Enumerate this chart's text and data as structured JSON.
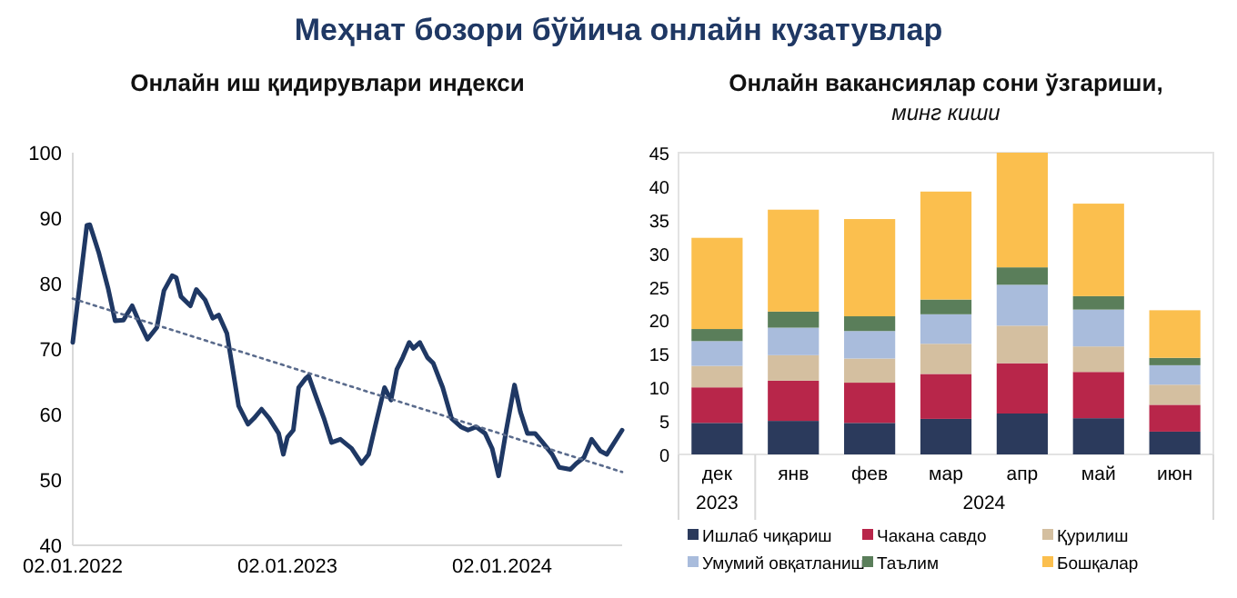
{
  "chart_data": [
    {
      "type": "line",
      "title": "Меҳнат бозори бўйича онлайн кузатувлар",
      "subtitle": "Онлайн иш қидирувлари индекси",
      "xlim": [
        "2022-01-02",
        "2024-07-24"
      ],
      "xticks": [
        {
          "value": "2022-01-02",
          "label": "02.01.2022"
        },
        {
          "value": "2023-01-02",
          "label": "02.01.2023"
        },
        {
          "value": "2024-01-02",
          "label": "02.01.2024"
        }
      ],
      "ylim": [
        40,
        100
      ],
      "yticks": [
        40,
        50,
        60,
        70,
        80,
        90,
        100
      ],
      "grid": false,
      "marker": "none",
      "series": [
        {
          "color": "#1f3864",
          "line_style": "solid",
          "x": [
            "2022-01-02",
            "2022-01-26",
            "2022-01-31",
            "2022-02-15",
            "2022-03-03",
            "2022-03-15",
            "2022-03-29",
            "2022-04-13",
            "2022-04-24",
            "2022-05-09",
            "2022-05-25",
            "2022-06-06",
            "2022-06-20",
            "2022-06-27",
            "2022-07-05",
            "2022-07-21",
            "2022-07-31",
            "2022-08-15",
            "2022-08-28",
            "2022-09-07",
            "2022-09-21",
            "2022-10-01",
            "2022-10-11",
            "2022-10-27",
            "2022-11-06",
            "2022-11-19",
            "2022-12-02",
            "2022-12-18",
            "2022-12-26",
            "2023-01-02",
            "2023-01-12",
            "2023-01-21",
            "2023-02-02",
            "2023-02-07",
            "2023-02-18",
            "2023-03-05",
            "2023-03-18",
            "2023-04-02",
            "2023-04-21",
            "2023-05-08",
            "2023-05-20",
            "2023-06-01",
            "2023-06-16",
            "2023-06-27",
            "2023-07-07",
            "2023-07-17",
            "2023-07-28",
            "2023-08-04",
            "2023-08-15",
            "2023-08-28",
            "2023-09-07",
            "2023-09-23",
            "2023-10-08",
            "2023-10-24",
            "2023-11-05",
            "2023-11-19",
            "2023-12-04",
            "2023-12-16",
            "2023-12-27",
            "2024-01-09",
            "2024-01-23",
            "2024-02-02",
            "2024-02-14",
            "2024-02-27",
            "2024-03-11",
            "2024-03-27",
            "2024-04-08",
            "2024-04-27",
            "2024-05-07",
            "2024-05-20",
            "2024-06-02",
            "2024-06-17",
            "2024-06-28",
            "2024-07-24"
          ],
          "values": [
            71,
            88.9,
            89,
            84.8,
            79.3,
            74.3,
            74.4,
            76.6,
            74.3,
            71.5,
            73.3,
            78.9,
            81.2,
            80.9,
            78,
            76.6,
            79.1,
            77.5,
            74.7,
            75.2,
            72.4,
            66.9,
            61.3,
            58.5,
            59.4,
            60.8,
            59.4,
            57.1,
            53.9,
            56.5,
            57.6,
            64.1,
            65.5,
            65.9,
            63.1,
            59.4,
            55.7,
            56.2,
            54.8,
            52.5,
            53.9,
            58.5,
            64.1,
            62.2,
            66.9,
            68.7,
            71,
            70.1,
            71,
            68.7,
            67.8,
            64.1,
            59.4,
            58.1,
            57.6,
            58.1,
            57.1,
            54.8,
            50.6,
            57.6,
            64.5,
            60.4,
            57.1,
            57.1,
            55.7,
            53.9,
            51.9,
            51.6,
            52.5,
            53.4,
            56.2,
            54.4,
            53.9,
            57.6
          ]
        },
        {
          "color": "#5a6b8c",
          "line_style": "dotted",
          "x": [
            "2022-01-02",
            "2024-07-24"
          ],
          "values": [
            77.7,
            51.2
          ]
        }
      ]
    },
    {
      "type": "bar",
      "stacked": true,
      "title": "Онлайн вакансиялар сони ўзгариши,",
      "subtitle": "минг киши",
      "categories": [
        "дек",
        "янв",
        "фев",
        "мар",
        "апр",
        "май",
        "июн"
      ],
      "ylim": [
        0,
        45
      ],
      "yticks": [
        0,
        5,
        10,
        15,
        20,
        25,
        30,
        35,
        40,
        45
      ],
      "grid": false,
      "legend": "bottom",
      "annotations": [
        "2023",
        "2024"
      ],
      "series": [
        {
          "name": "Ишлаб чиқариш",
          "color": "#2b3a5c",
          "values": [
            4.7,
            5.0,
            4.7,
            5.3,
            6.1,
            5.4,
            3.4
          ]
        },
        {
          "name": "Чакана савдо",
          "color": "#b8264a",
          "values": [
            5.3,
            6.0,
            6.0,
            6.7,
            7.5,
            6.9,
            4.0
          ]
        },
        {
          "name": "Қурилиш",
          "color": "#d4bfa0",
          "values": [
            3.2,
            3.8,
            3.6,
            4.5,
            5.6,
            3.8,
            3.0
          ]
        },
        {
          "name": "Умумий овқатланиш",
          "color": "#a9bcdc",
          "values": [
            3.7,
            4.1,
            4.1,
            4.4,
            6.1,
            5.5,
            2.9
          ]
        },
        {
          "name": "Таълим",
          "color": "#5a7e5a",
          "values": [
            1.8,
            2.4,
            2.2,
            2.2,
            2.6,
            2.0,
            1.1
          ]
        },
        {
          "name": "Бошқалар",
          "color": "#fbbf4e",
          "values": [
            13.6,
            15.2,
            14.5,
            16.1,
            17.1,
            13.8,
            7.1
          ]
        }
      ]
    }
  ]
}
